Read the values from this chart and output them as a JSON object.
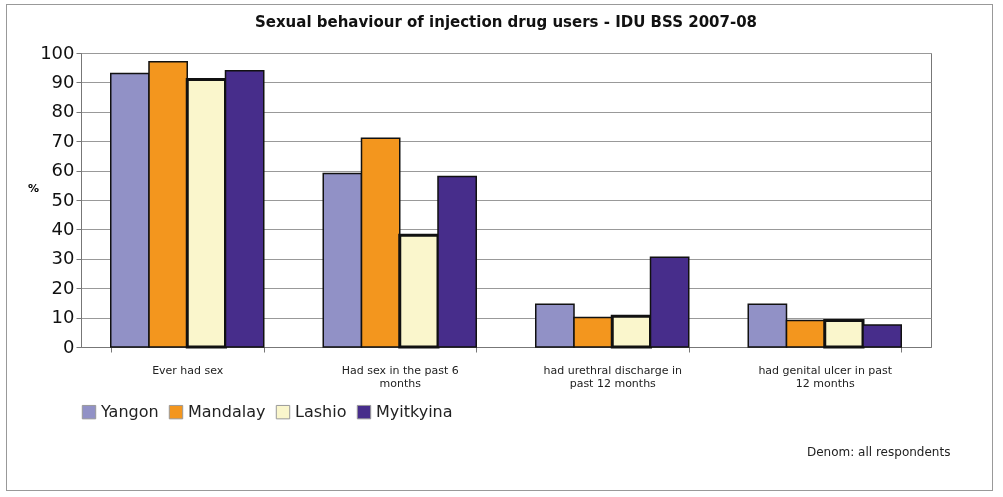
{
  "chart_data": {
    "type": "bar",
    "title": "Sexual behaviour of injection drug users  - IDU BSS 2007-08",
    "ylabel": "%",
    "categories": [
      "Ever had sex",
      "Had sex in the past 6 months",
      "had urethral discharge in past 12 months",
      "had genital ulcer in past 12 months"
    ],
    "series": [
      {
        "name": "Yangon",
        "color": "#9191c6",
        "values": [
          93,
          59,
          14.5,
          14.5
        ]
      },
      {
        "name": "Mandalay",
        "color": "#f3961e",
        "values": [
          97,
          71,
          10,
          9
        ]
      },
      {
        "name": "Lashio",
        "color": "#faf6cc",
        "values": [
          91,
          38,
          10.5,
          9
        ]
      },
      {
        "name": "Myitkyina",
        "color": "#472d8b",
        "values": [
          94,
          58,
          30.5,
          7.5
        ]
      }
    ],
    "ylim": [
      0,
      100
    ],
    "yticks": [
      0,
      10,
      20,
      30,
      40,
      50,
      60,
      70,
      80,
      90,
      100
    ],
    "grid": "y",
    "legend": "bottom left",
    "annotations": [
      "Denom: all respondents"
    ]
  }
}
